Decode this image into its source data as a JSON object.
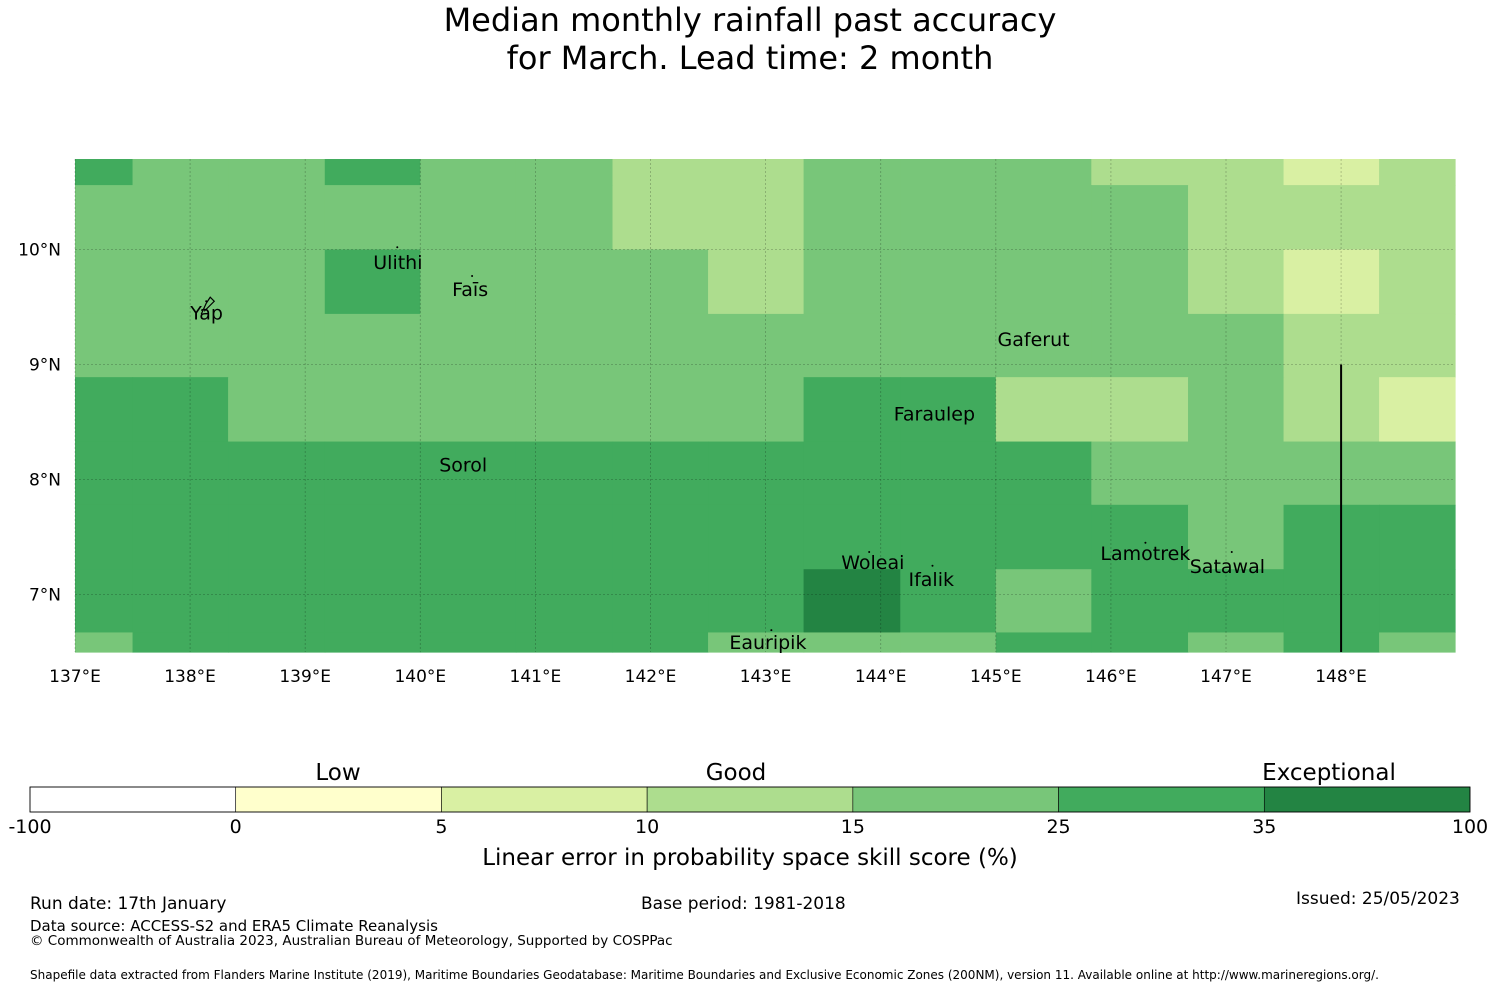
{
  "title": {
    "line1": "Median monthly rainfall past accuracy",
    "line2": "for March. Lead time: 2 month"
  },
  "map": {
    "lon_range": [
      137,
      149
    ],
    "lat_range": [
      6.5,
      10.8
    ],
    "lon_ticks": [
      {
        "value": 137,
        "label": "137°E"
      },
      {
        "value": 138,
        "label": "138°E"
      },
      {
        "value": 139,
        "label": "139°E"
      },
      {
        "value": 140,
        "label": "140°E"
      },
      {
        "value": 141,
        "label": "141°E"
      },
      {
        "value": 142,
        "label": "142°E"
      },
      {
        "value": 143,
        "label": "143°E"
      },
      {
        "value": 144,
        "label": "144°E"
      },
      {
        "value": 145,
        "label": "145°E"
      },
      {
        "value": 146,
        "label": "146°E"
      },
      {
        "value": 147,
        "label": "147°E"
      },
      {
        "value": 148,
        "label": "148°E"
      }
    ],
    "lat_ticks": [
      {
        "value": 10,
        "label": "10°N"
      },
      {
        "value": 9,
        "label": "9°N"
      },
      {
        "value": 8,
        "label": "8°N"
      },
      {
        "value": 7,
        "label": "7°N"
      }
    ],
    "grid_lon_edges": [
      137,
      137.5,
      138.33,
      139.17,
      140,
      140.83,
      141.67,
      142.5,
      143.33,
      144.17,
      145,
      145.83,
      146.67,
      147.5,
      148.33,
      149
    ],
    "grid_lat_edges": [
      10.8,
      10.56,
      10,
      9.44,
      8.89,
      8.33,
      7.78,
      7.22,
      6.67,
      6.5
    ],
    "cell_classes": [
      [
        5,
        4,
        4,
        5,
        4,
        4,
        3,
        3,
        4,
        4,
        4,
        3,
        3,
        2,
        3
      ],
      [
        4,
        4,
        4,
        4,
        4,
        4,
        3,
        3,
        4,
        4,
        4,
        4,
        3,
        3,
        3
      ],
      [
        4,
        4,
        4,
        5,
        4,
        4,
        4,
        3,
        4,
        4,
        4,
        4,
        3,
        2,
        3
      ],
      [
        4,
        4,
        4,
        4,
        4,
        4,
        4,
        4,
        4,
        4,
        4,
        4,
        4,
        3,
        3
      ],
      [
        5,
        5,
        4,
        4,
        4,
        4,
        4,
        4,
        5,
        5,
        3,
        3,
        4,
        3,
        2
      ],
      [
        5,
        5,
        5,
        5,
        5,
        5,
        5,
        5,
        5,
        5,
        5,
        4,
        4,
        4,
        4
      ],
      [
        5,
        5,
        5,
        5,
        5,
        5,
        5,
        5,
        5,
        5,
        5,
        5,
        4,
        5,
        5
      ],
      [
        5,
        5,
        5,
        5,
        5,
        5,
        5,
        5,
        6,
        5,
        4,
        5,
        5,
        5,
        5
      ],
      [
        4,
        5,
        5,
        5,
        5,
        5,
        5,
        4,
        4,
        4,
        5,
        5,
        4,
        5,
        4
      ]
    ],
    "boundary_line_lon": 148,
    "boundary_line_lat_top": 9,
    "islands": [
      {
        "name": "Ulithi",
        "lon": 139.8,
        "lat": 10.02
      },
      {
        "name": "Faīs",
        "lon": 140.45,
        "lat": 9.77
      },
      {
        "name": "Yap",
        "lon": 138.14,
        "lat": 9.55
      },
      {
        "name": "Gaferut",
        "lon": 145.38,
        "lat": 9.23
      },
      {
        "name": "Faraulep",
        "lon": 144.53,
        "lat": 8.6
      },
      {
        "name": "Sorol",
        "lon": 140.39,
        "lat": 8.14
      },
      {
        "name": "Woleai",
        "lon": 143.9,
        "lat": 7.37
      },
      {
        "name": "Ifalik",
        "lon": 144.45,
        "lat": 7.25
      },
      {
        "name": "Lamotrek",
        "lon": 146.3,
        "lat": 7.45
      },
      {
        "name": "Satawal",
        "lon": 147.05,
        "lat": 7.37
      },
      {
        "name": "Eauripik",
        "lon": 143.05,
        "lat": 6.69
      }
    ]
  },
  "colorbar": {
    "classes": [
      {
        "from": "-100",
        "to": "0",
        "color": "#ffffff"
      },
      {
        "from": "0",
        "to": "5",
        "color": "#ffffcc"
      },
      {
        "from": "5",
        "to": "10",
        "color": "#d9f0a3"
      },
      {
        "from": "10",
        "to": "15",
        "color": "#addd8e"
      },
      {
        "from": "15",
        "to": "25",
        "color": "#78c679"
      },
      {
        "from": "25",
        "to": "35",
        "color": "#41ab5d"
      },
      {
        "from": "35",
        "to": "100",
        "color": "#238443"
      }
    ],
    "tick_labels": [
      "-100",
      "0",
      "5",
      "10",
      "15",
      "25",
      "35",
      "100"
    ],
    "category_labels": {
      "low": "Low",
      "good": "Good",
      "exceptional": "Exceptional"
    },
    "title": "Linear error in probability space skill score (%)"
  },
  "footer": {
    "run_date": "Run date: 17th January",
    "base_period": "Base period: 1981-2018",
    "issued": "Issued: 25/05/2023",
    "data_source": "Data source: ACCESS-S2 and ERA5 Climate Reanalysis",
    "copyright": "© Commonwealth of Australia 2023, Australian Bureau of Meteorology, Supported by COSPPac",
    "shapefile": "Shapefile data extracted from Flanders Marine Institute (2019), Maritime Boundaries Geodatabase: Maritime Boundaries and Exclusive Economic Zones (200NM), version 11. Available online at http://www.marineregions.org/."
  }
}
